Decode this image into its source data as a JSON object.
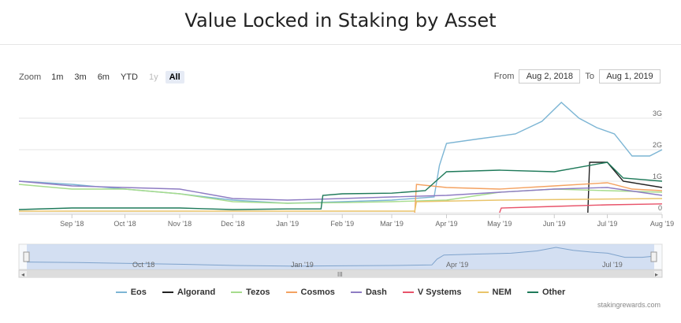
{
  "title": "Value Locked in Staking by Asset",
  "zoom": {
    "label": "Zoom",
    "buttons": [
      {
        "label": "1m",
        "state": "normal"
      },
      {
        "label": "3m",
        "state": "normal"
      },
      {
        "label": "6m",
        "state": "normal"
      },
      {
        "label": "YTD",
        "state": "normal"
      },
      {
        "label": "1y",
        "state": "disabled"
      },
      {
        "label": "All",
        "state": "selected"
      }
    ]
  },
  "range": {
    "from_label": "From",
    "from_value": "Aug 2, 2018",
    "to_label": "To",
    "to_value": "Aug 1, 2019"
  },
  "credit": "stakingrewards.com",
  "navigator": {
    "labels": [
      "Oct '18",
      "Jan '19",
      "Apr '19",
      "Jul '19"
    ],
    "scroll_grip": "III"
  },
  "chart_data": {
    "type": "line",
    "title": "Value Locked in Staking by Asset",
    "x_ticks": [
      "Sep '18",
      "Oct '18",
      "Nov '18",
      "Dec '18",
      "Jan '19",
      "Feb '19",
      "Mar '19",
      "Apr '19",
      "May '19",
      "Jun '19",
      "Jul '19",
      "Aug '19"
    ],
    "y_ticks": [
      "0",
      "1G",
      "2G",
      "3G"
    ],
    "ylim": [
      0,
      3500000000
    ],
    "x_range": [
      "2018-08-02",
      "2019-08-01"
    ],
    "legend_position": "bottom",
    "series": [
      {
        "name": "Eos",
        "color": "#7cb5d4",
        "points": [
          [
            "2018-08-02",
            1000000000.0
          ],
          [
            "2018-09-01",
            900000000.0
          ],
          [
            "2018-10-01",
            750000000.0
          ],
          [
            "2018-11-01",
            600000000.0
          ],
          [
            "2018-12-01",
            400000000.0
          ],
          [
            "2019-01-01",
            300000000.0
          ],
          [
            "2019-02-01",
            350000000.0
          ],
          [
            "2019-03-01",
            400000000.0
          ],
          [
            "2019-03-25",
            500000000.0
          ],
          [
            "2019-03-28",
            1500000000.0
          ],
          [
            "2019-04-01",
            2200000000.0
          ],
          [
            "2019-04-20",
            2350000000.0
          ],
          [
            "2019-05-10",
            2500000000.0
          ],
          [
            "2019-05-25",
            2900000000.0
          ],
          [
            "2019-06-05",
            3500000000.0
          ],
          [
            "2019-06-15",
            3000000000.0
          ],
          [
            "2019-06-25",
            2700000000.0
          ],
          [
            "2019-07-05",
            2500000000.0
          ],
          [
            "2019-07-15",
            1800000000.0
          ],
          [
            "2019-07-25",
            1800000000.0
          ],
          [
            "2019-08-01",
            2000000000.0
          ]
        ]
      },
      {
        "name": "Algorand",
        "color": "#222222",
        "points": [
          [
            "2019-06-20",
            0
          ],
          [
            "2019-06-21",
            1600000000.0
          ],
          [
            "2019-07-01",
            1600000000.0
          ],
          [
            "2019-07-10",
            1000000000.0
          ],
          [
            "2019-08-01",
            800000000.0
          ]
        ]
      },
      {
        "name": "Tezos",
        "color": "#a6dc8c",
        "points": [
          [
            "2018-08-02",
            900000000.0
          ],
          [
            "2018-09-01",
            750000000.0
          ],
          [
            "2018-10-01",
            750000000.0
          ],
          [
            "2018-11-01",
            600000000.0
          ],
          [
            "2018-12-01",
            350000000.0
          ],
          [
            "2019-01-01",
            300000000.0
          ],
          [
            "2019-02-01",
            320000000.0
          ],
          [
            "2019-03-01",
            350000000.0
          ],
          [
            "2019-04-01",
            400000000.0
          ],
          [
            "2019-05-01",
            650000000.0
          ],
          [
            "2019-06-01",
            750000000.0
          ],
          [
            "2019-07-01",
            700000000.0
          ],
          [
            "2019-08-01",
            650000000.0
          ]
        ]
      },
      {
        "name": "Cosmos",
        "color": "#f4a261",
        "points": [
          [
            "2019-03-14",
            0
          ],
          [
            "2019-03-15",
            900000000.0
          ],
          [
            "2019-04-01",
            800000000.0
          ],
          [
            "2019-05-01",
            750000000.0
          ],
          [
            "2019-06-01",
            850000000.0
          ],
          [
            "2019-07-01",
            950000000.0
          ],
          [
            "2019-07-15",
            750000000.0
          ],
          [
            "2019-08-01",
            700000000.0
          ]
        ]
      },
      {
        "name": "Dash",
        "color": "#8e7cc3",
        "points": [
          [
            "2018-08-02",
            1000000000.0
          ],
          [
            "2018-09-01",
            850000000.0
          ],
          [
            "2018-10-01",
            800000000.0
          ],
          [
            "2018-11-01",
            750000000.0
          ],
          [
            "2018-12-01",
            450000000.0
          ],
          [
            "2019-01-01",
            400000000.0
          ],
          [
            "2019-02-01",
            450000000.0
          ],
          [
            "2019-03-01",
            500000000.0
          ],
          [
            "2019-04-01",
            550000000.0
          ],
          [
            "2019-05-01",
            650000000.0
          ],
          [
            "2019-06-01",
            750000000.0
          ],
          [
            "2019-07-01",
            800000000.0
          ],
          [
            "2019-08-01",
            550000000.0
          ]
        ]
      },
      {
        "name": "V Systems",
        "color": "#e8536a",
        "points": [
          [
            "2019-05-01",
            0
          ],
          [
            "2019-05-02",
            150000000.0
          ],
          [
            "2019-06-01",
            200000000.0
          ],
          [
            "2019-07-01",
            250000000.0
          ],
          [
            "2019-08-01",
            280000000.0
          ]
        ]
      },
      {
        "name": "NEM",
        "color": "#e9c46a",
        "points": [
          [
            "2018-08-02",
            50000000.0
          ],
          [
            "2018-12-01",
            50000000.0
          ],
          [
            "2019-03-14",
            50000000.0
          ],
          [
            "2019-03-15",
            350000000.0
          ],
          [
            "2019-05-01",
            400000000.0
          ],
          [
            "2019-08-01",
            450000000.0
          ]
        ]
      },
      {
        "name": "Other",
        "color": "#1f7a5a",
        "points": [
          [
            "2018-08-02",
            100000000.0
          ],
          [
            "2018-09-01",
            150000000.0
          ],
          [
            "2018-11-01",
            150000000.0
          ],
          [
            "2018-12-01",
            100000000.0
          ],
          [
            "2019-01-01",
            120000000.0
          ],
          [
            "2019-01-20",
            120000000.0
          ],
          [
            "2019-01-21",
            550000000.0
          ],
          [
            "2019-02-01",
            600000000.0
          ],
          [
            "2019-03-01",
            620000000.0
          ],
          [
            "2019-03-20",
            700000000.0
          ],
          [
            "2019-04-01",
            1300000000.0
          ],
          [
            "2019-05-01",
            1350000000.0
          ],
          [
            "2019-06-01",
            1300000000.0
          ],
          [
            "2019-07-01",
            1600000000.0
          ],
          [
            "2019-07-10",
            1100000000.0
          ],
          [
            "2019-08-01",
            1000000000.0
          ]
        ]
      }
    ]
  }
}
